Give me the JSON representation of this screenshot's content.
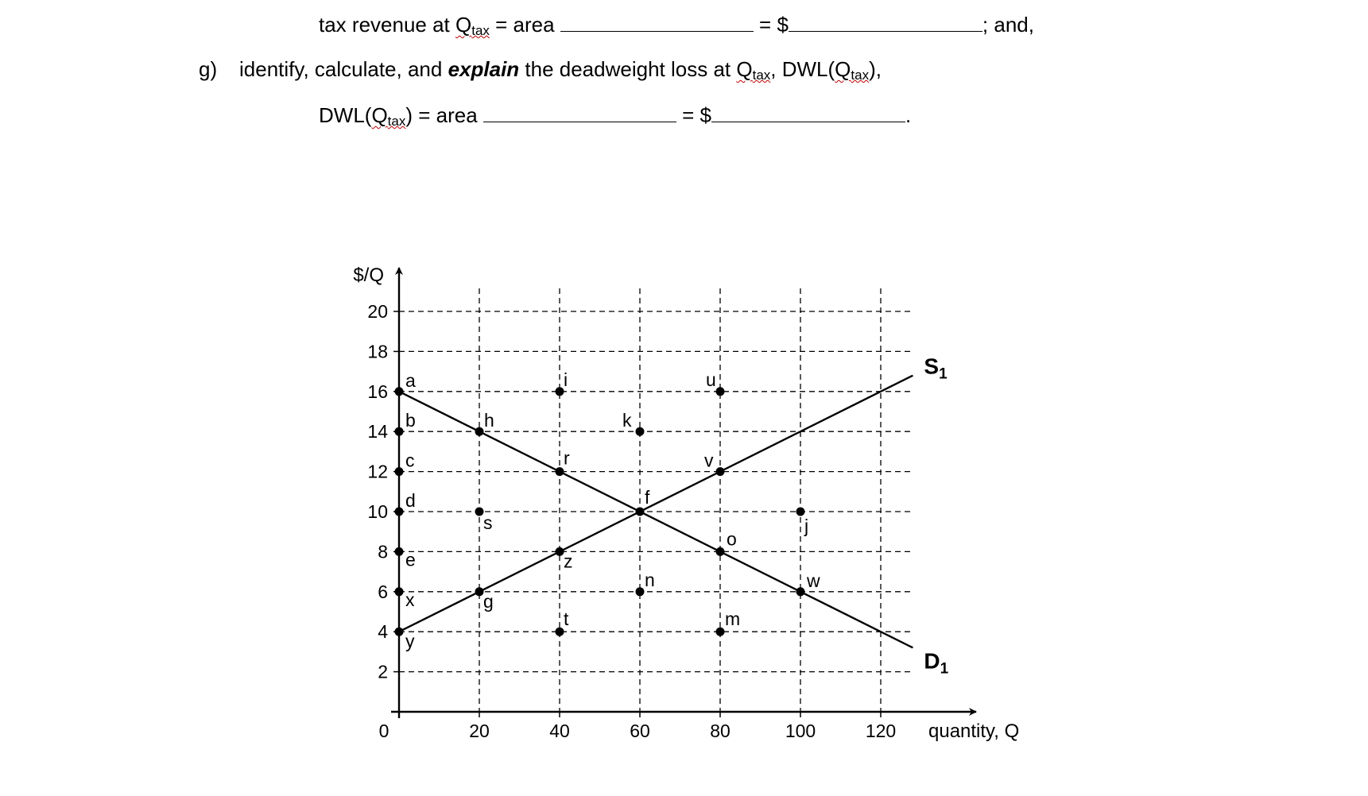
{
  "text": {
    "line1": {
      "lead": "tax revenue at ",
      "q": "Q",
      "q_sub": "tax",
      "mid": " = area ",
      "eq": " = $",
      "tail": "; and,"
    },
    "line2": {
      "label": "g)",
      "part1": "identify, calculate, and ",
      "emph": "explain",
      "part2": " the deadweight loss at ",
      "q": "Q",
      "q_sub": "tax",
      "part3": ", DWL(",
      "q2": "Q",
      "q2_sub": "tax",
      "part4": "),"
    },
    "line3": {
      "lead": "DWL(",
      "q": "Q",
      "q_sub": "tax",
      "mid": ") = area ",
      "eq": " = $",
      "tail": "."
    }
  },
  "chart_data": {
    "type": "line",
    "ylabel": "$/Q",
    "xlabel": "quantity, Q",
    "origin_label": "0",
    "xlim": [
      0,
      135
    ],
    "ylim": [
      0,
      21
    ],
    "x_ticks": [
      20,
      40,
      60,
      80,
      100,
      120
    ],
    "y_ticks": [
      2,
      4,
      6,
      8,
      10,
      12,
      14,
      16,
      18,
      20
    ],
    "grid": true,
    "grid_style": "dashed",
    "series": [
      {
        "name": "S",
        "subscript": "1",
        "points": [
          [
            0,
            4
          ],
          [
            128,
            16.8
          ]
        ]
      },
      {
        "name": "D",
        "subscript": "1",
        "points": [
          [
            0,
            16
          ],
          [
            128,
            3.2
          ]
        ]
      }
    ],
    "points": [
      {
        "label": "a",
        "x": 0,
        "y": 16
      },
      {
        "label": "b",
        "x": 0,
        "y": 14
      },
      {
        "label": "c",
        "x": 0,
        "y": 12
      },
      {
        "label": "d",
        "x": 0,
        "y": 10
      },
      {
        "label": "e",
        "x": 0,
        "y": 8
      },
      {
        "label": "x",
        "x": 0,
        "y": 6
      },
      {
        "label": "y",
        "x": 0,
        "y": 4
      },
      {
        "label": "h",
        "x": 20,
        "y": 14
      },
      {
        "label": "s",
        "x": 20,
        "y": 10
      },
      {
        "label": "g",
        "x": 20,
        "y": 6
      },
      {
        "label": "i",
        "x": 40,
        "y": 16
      },
      {
        "label": "r",
        "x": 40,
        "y": 12
      },
      {
        "label": "z",
        "x": 40,
        "y": 8
      },
      {
        "label": "t",
        "x": 40,
        "y": 4
      },
      {
        "label": "k",
        "x": 60,
        "y": 14
      },
      {
        "label": "f",
        "x": 60,
        "y": 10
      },
      {
        "label": "n",
        "x": 60,
        "y": 6
      },
      {
        "label": "u",
        "x": 80,
        "y": 16
      },
      {
        "label": "v",
        "x": 80,
        "y": 12
      },
      {
        "label": "o",
        "x": 80,
        "y": 8
      },
      {
        "label": "m",
        "x": 80,
        "y": 4
      },
      {
        "label": "j",
        "x": 100,
        "y": 10
      },
      {
        "label": "w",
        "x": 100,
        "y": 6
      }
    ]
  }
}
